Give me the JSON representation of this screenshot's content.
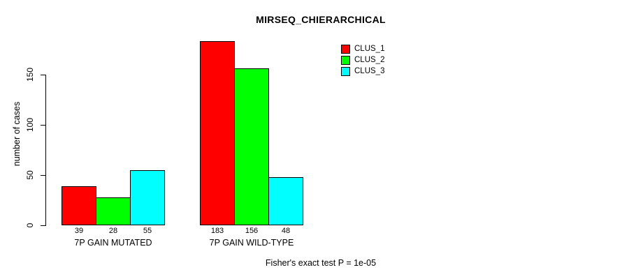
{
  "title": "MIRSEQ_CHIERARCHICAL",
  "footnote": "Fisher's exact test P = 1e-05",
  "colors": {
    "background": "#ffffff",
    "axis": "#000000",
    "text": "#000000",
    "clus_1": "#ff0000",
    "clus_2": "#00ff00",
    "clus_3": "#00ffff"
  },
  "chart_data": {
    "type": "bar",
    "title": "MIRSEQ_CHIERARCHICAL",
    "xlabel": "",
    "ylabel": "number of cases",
    "ylim": [
      0,
      150
    ],
    "yticks": [
      0,
      50,
      100,
      150
    ],
    "grid": false,
    "legend_position": "top-right",
    "categories": [
      "7P GAIN MUTATED",
      "7P GAIN WILD-TYPE"
    ],
    "series": [
      {
        "name": "CLUS_1",
        "color": "#ff0000",
        "values": [
          39,
          183
        ]
      },
      {
        "name": "CLUS_2",
        "color": "#00ff00",
        "values": [
          28,
          156
        ]
      },
      {
        "name": "CLUS_3",
        "color": "#00ffff",
        "values": [
          55,
          48
        ]
      }
    ],
    "bar_value_labels": [
      [
        39,
        28,
        55
      ],
      [
        183,
        156,
        48
      ]
    ],
    "footnote": "Fisher's exact test P = 1e-05"
  }
}
